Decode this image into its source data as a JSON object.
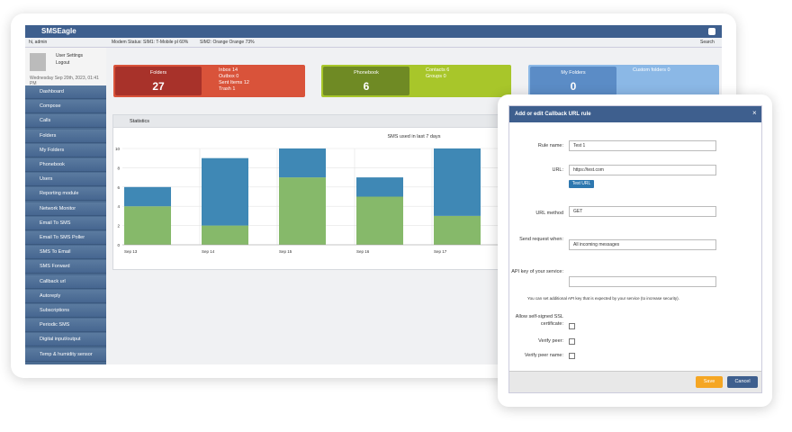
{
  "header": {
    "brand": "SMSEagle"
  },
  "topbar": {
    "user": "hi, admin",
    "modem_status": "Modem Status: SIM1: T-Mobile pl 60%",
    "sim2": "SIM2: Orange Orange 73%",
    "search": "Search"
  },
  "user_panel": {
    "settings": "User Settings",
    "logout": "Logout",
    "date": "Wednesday Sep 20th, 2023, 01:41 PM"
  },
  "menu": [
    "Dashboard",
    "Compose",
    "Calls",
    "Folders",
    "My Folders",
    "Phonebook",
    "Users",
    "Reporting module",
    "Network Monitor",
    "Email To SMS",
    "Email To SMS Poller",
    "SMS To Email",
    "SMS Forward",
    "Callback url",
    "Autoreply",
    "Subscriptions",
    "Periodic SMS",
    "Digital input/output",
    "Temp & humidity sensor"
  ],
  "tiles": [
    {
      "title": "Folders",
      "value": 27,
      "details": [
        "Inbox 14",
        "Outbox 0",
        "Sent Items 12",
        "Trash 1"
      ]
    },
    {
      "title": "Phonebook",
      "value": 6,
      "details": [
        "Contacts 6",
        "Groups 0"
      ]
    },
    {
      "title": "My Folders",
      "value": 0,
      "details": [
        "Custom folders 0"
      ]
    }
  ],
  "panel": {
    "title": "Statistics"
  },
  "chart_data": {
    "type": "bar",
    "stacked": true,
    "title": "SMS used in last 7 days",
    "categories": [
      "Sep 13",
      "Sep 14",
      "Sep 15",
      "Sep 16",
      "Sep 17"
    ],
    "series": [
      {
        "color": "#86b96a",
        "values": [
          4,
          2,
          7,
          5,
          3
        ]
      },
      {
        "color": "#3f88b5",
        "values": [
          2,
          7,
          3,
          2,
          7
        ]
      }
    ],
    "ylim": [
      0,
      10
    ],
    "yticks": [
      0,
      2,
      4,
      6,
      8,
      10
    ],
    "grid": true
  },
  "modal": {
    "title": "Add or edit Callback URL rule",
    "rule_name_label": "Rule name:",
    "rule_name": "Test 1",
    "url_label": "URL:",
    "url": "https://test.com",
    "test_button": "Test URL",
    "method_label": "URL method",
    "method": "GET",
    "send_label": "Send request when:",
    "send": "All incoming messages",
    "api_label": "API key of your service:",
    "help": "You can set additional API key that is expected by your service (to increase security).",
    "ssl_label": "Allow self-signed SSL certificate:",
    "peer_label": "Verify peer:",
    "peer_name_label": "Verify peer name:",
    "save": "Save",
    "cancel": "Cancel",
    "close": "×"
  }
}
